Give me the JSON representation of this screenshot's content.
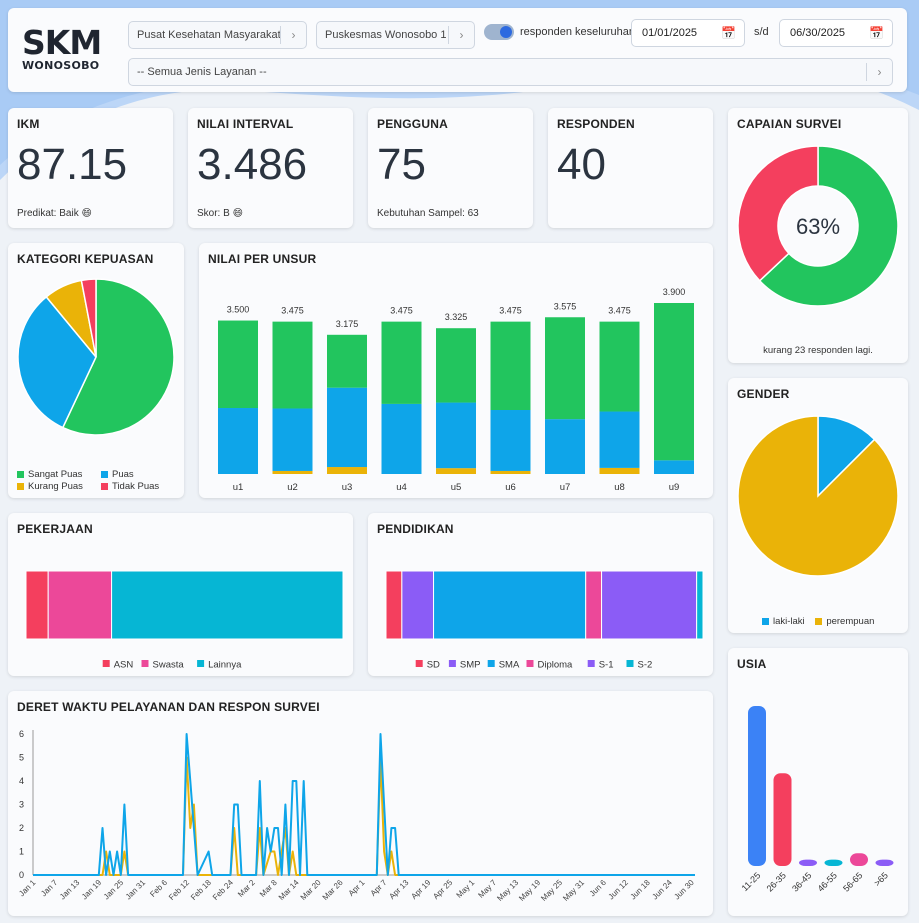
{
  "header": {
    "logo_line1": "SKM",
    "logo_line2": "WONOSOBO",
    "select_type": "Pusat Kesehatan Masyarakat",
    "select_unit": "Puskesmas Wonosobo 1",
    "toggle_label": "responden keseluruhan",
    "date_from": "01/01/2025",
    "date_sep": "s/d",
    "date_to": "06/30/2025",
    "select_service": "-- Semua Jenis Layanan --"
  },
  "stats": {
    "ikm": {
      "title": "IKM",
      "value": "87.15",
      "sub": "Predikat: Baik 😄"
    },
    "interval": {
      "title": "NILAI INTERVAL",
      "value": "3.486",
      "sub": "Skor: B 😄"
    },
    "pengguna": {
      "title": "PENGGUNA",
      "value": "75",
      "sub": "Kebutuhan Sampel: 63"
    },
    "responden": {
      "title": "RESPONDEN",
      "value": "40"
    }
  },
  "capaian": {
    "title": "CAPAIAN SURVEI",
    "center": "63%",
    "note": "kurang 23 responden lagi."
  },
  "colors": {
    "green": "#22c55e",
    "blue": "#0ea5e9",
    "yellow": "#eab308",
    "red": "#f43f5e",
    "pink": "#ec4899",
    "cyan": "#06b6d4",
    "purple": "#8b5cf6",
    "brightblue": "#3b82f6"
  },
  "chart_data": [
    {
      "id": "kategori",
      "type": "pie",
      "title": "KATEGORI KEPUASAN",
      "labels": [
        "Sangat Puas",
        "Puas",
        "Kurang Puas",
        "Tidak Puas"
      ],
      "values": [
        57,
        32,
        8,
        3
      ],
      "colors": [
        "#22c55e",
        "#0ea5e9",
        "#eab308",
        "#f43f5e"
      ]
    },
    {
      "id": "unsur",
      "type": "bar",
      "title": "NILAI PER UNSUR",
      "categories": [
        "u1",
        "u2",
        "u3",
        "u4",
        "u5",
        "u6",
        "u7",
        "u8",
        "u9"
      ],
      "totals": [
        "3.500",
        "3.475",
        "3.175",
        "3.475",
        "3.325",
        "3.475",
        "3.575",
        "3.475",
        "3.900"
      ],
      "stacked_percent": [
        {
          "green": 57,
          "blue": 43,
          "yellow": 0
        },
        {
          "green": 57,
          "blue": 41,
          "yellow": 2
        },
        {
          "green": 38,
          "blue": 57,
          "yellow": 5
        },
        {
          "green": 54,
          "blue": 46,
          "yellow": 0
        },
        {
          "green": 51,
          "blue": 45,
          "yellow": 4
        },
        {
          "green": 58,
          "blue": 40,
          "yellow": 2
        },
        {
          "green": 65,
          "blue": 35,
          "yellow": 0
        },
        {
          "green": 59,
          "blue": 37,
          "yellow": 4
        },
        {
          "green": 92,
          "blue": 8,
          "yellow": 0
        }
      ]
    },
    {
      "id": "pekerjaan",
      "type": "bar",
      "title": "PEKERJAAN",
      "labels": [
        "ASN",
        "Swasta",
        "Lainnya"
      ],
      "values": [
        7,
        20,
        73
      ],
      "colors": [
        "#f43f5e",
        "#ec4899",
        "#06b6d4"
      ]
    },
    {
      "id": "pendidikan",
      "type": "bar",
      "title": "PENDIDIKAN",
      "labels": [
        "SD",
        "SMP",
        "SMA",
        "Diploma",
        "S-1",
        "S-2"
      ],
      "values": [
        5,
        10,
        48,
        5,
        30,
        2
      ],
      "colors": [
        "#f43f5e",
        "#8b5cf6",
        "#0ea5e9",
        "#ec4899",
        "#8b5cf6",
        "#06b6d4"
      ]
    },
    {
      "id": "capaian",
      "type": "pie",
      "title": "CAPAIAN SURVEI",
      "values": [
        63,
        37
      ],
      "colors": [
        "#22c55e",
        "#f43f5e"
      ]
    },
    {
      "id": "gender",
      "type": "pie",
      "title": "GENDER",
      "labels": [
        "laki-laki",
        "perempuan"
      ],
      "values": [
        12.5,
        87.5
      ],
      "colors": [
        "#0ea5e9",
        "#eab308"
      ]
    },
    {
      "id": "usia",
      "type": "bar",
      "title": "USIA",
      "categories": [
        "11-25",
        "26-35",
        "36-45",
        "46-55",
        "56-65",
        ">65"
      ],
      "values": [
        100,
        58,
        4,
        4,
        8,
        4
      ],
      "colors": [
        "#3b82f6",
        "#f43f5e",
        "#8b5cf6",
        "#06b6d4",
        "#ec4899",
        "#8b5cf6"
      ]
    },
    {
      "id": "deret",
      "type": "line",
      "title": "DERET WAKTU PELAYANAN DAN RESPON SURVEI",
      "ylim": [
        0,
        6
      ],
      "yticks": [
        0,
        1,
        2,
        3,
        4,
        5,
        6
      ],
      "xticks": [
        "Jan 1",
        "Jan 7",
        "Jan 13",
        "Jan 19",
        "Jan 25",
        "Jan 31",
        "Feb 6",
        "Feb 12",
        "Feb 18",
        "Feb 24",
        "Mar 2",
        "Mar 8",
        "Mar 14",
        "Mar 20",
        "Mar 26",
        "Apr 1",
        "Apr 7",
        "Apr 13",
        "Apr 19",
        "Apr 25",
        "May 1",
        "May 7",
        "May 13",
        "May 19",
        "May 25",
        "May 31",
        "Jun 6",
        "Jun 12",
        "Jun 18",
        "Jun 24",
        "Jun 30"
      ],
      "series": [
        {
          "color": "#0ea5e9",
          "points": [
            [
              0,
              0
            ],
            [
              18,
              0
            ],
            [
              19,
              2
            ],
            [
              20,
              0
            ],
            [
              21,
              1
            ],
            [
              22,
              0
            ],
            [
              23,
              1
            ],
            [
              24,
              0
            ],
            [
              25,
              3
            ],
            [
              26,
              0
            ],
            [
              41,
              0
            ],
            [
              42,
              6
            ],
            [
              43,
              4
            ],
            [
              44,
              2
            ],
            [
              45,
              0
            ],
            [
              48,
              1
            ],
            [
              49,
              0
            ],
            [
              54,
              0
            ],
            [
              55,
              3
            ],
            [
              56,
              3
            ],
            [
              57,
              0
            ],
            [
              61,
              0
            ],
            [
              62,
              4
            ],
            [
              63,
              0
            ],
            [
              64,
              2
            ],
            [
              65,
              1
            ],
            [
              66,
              2
            ],
            [
              67,
              2
            ],
            [
              68,
              0
            ],
            [
              69,
              3
            ],
            [
              70,
              0
            ],
            [
              71,
              4
            ],
            [
              72,
              4
            ],
            [
              73,
              0
            ],
            [
              74,
              4
            ],
            [
              75,
              0
            ],
            [
              94,
              0
            ],
            [
              95,
              6
            ],
            [
              96,
              3
            ],
            [
              97,
              0
            ],
            [
              98,
              2
            ],
            [
              99,
              2
            ],
            [
              100,
              0
            ],
            [
              181,
              0
            ]
          ]
        },
        {
          "color": "#eab308",
          "points": [
            [
              0,
              0
            ],
            [
              19,
              0
            ],
            [
              20,
              1
            ],
            [
              21,
              0
            ],
            [
              24,
              0
            ],
            [
              25,
              1
            ],
            [
              26,
              0
            ],
            [
              41,
              0
            ],
            [
              42,
              5
            ],
            [
              43,
              2
            ],
            [
              44,
              3
            ],
            [
              45,
              0
            ],
            [
              54,
              0
            ],
            [
              55,
              2
            ],
            [
              56,
              0
            ],
            [
              61,
              0
            ],
            [
              62,
              2
            ],
            [
              63,
              0
            ],
            [
              65,
              1
            ],
            [
              66,
              1
            ],
            [
              67,
              0
            ],
            [
              69,
              2
            ],
            [
              70,
              0
            ],
            [
              71,
              1
            ],
            [
              72,
              0
            ],
            [
              94,
              0
            ],
            [
              95,
              5
            ],
            [
              96,
              1
            ],
            [
              97,
              0
            ],
            [
              98,
              1
            ],
            [
              99,
              0
            ],
            [
              181,
              0
            ]
          ]
        }
      ]
    }
  ]
}
